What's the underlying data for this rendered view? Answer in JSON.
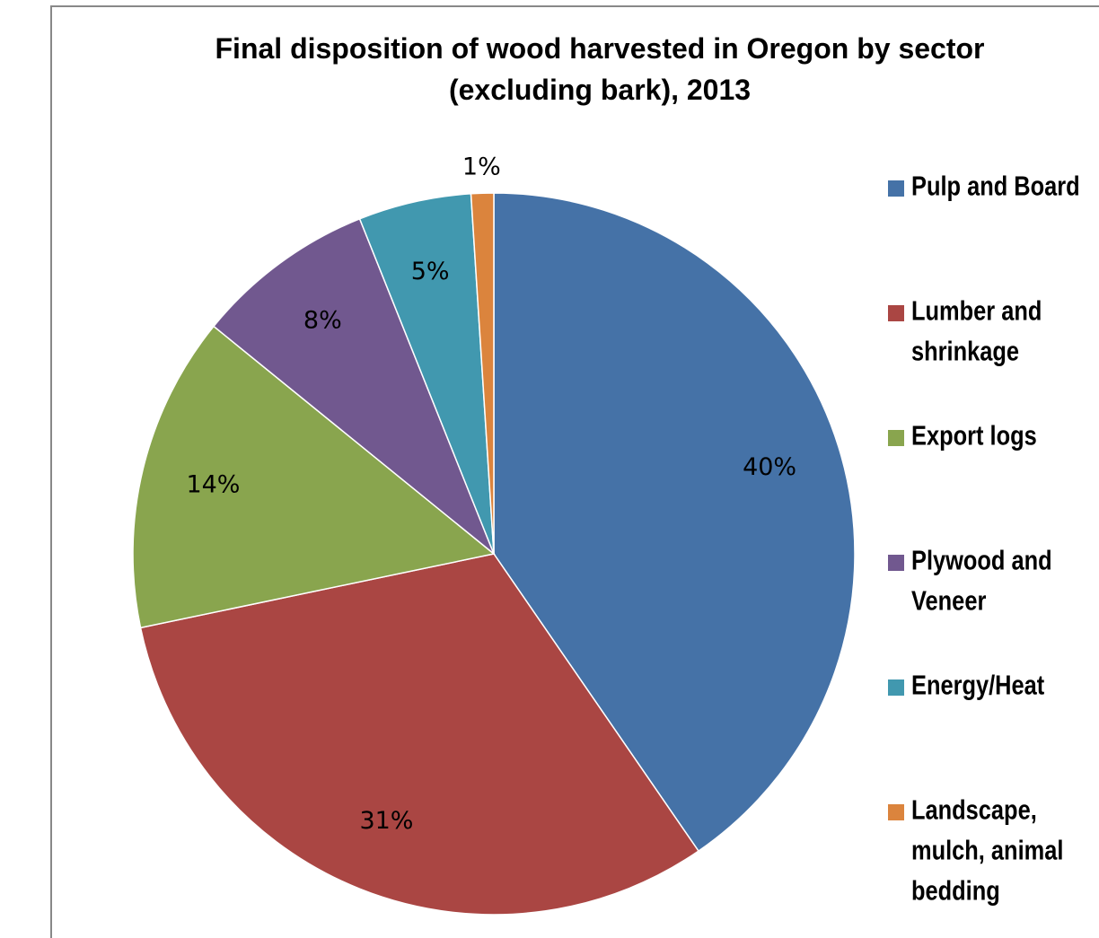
{
  "chart_data": {
    "type": "pie",
    "title": "Final disposition of wood harvested in Oregon by sector (excluding bark), 2013",
    "categories": [
      "Pulp and Board",
      "Lumber and shrinkage",
      "Export logs",
      "Plywood and Veneer",
      "Energy/Heat",
      "Landscape, mulch, animal bedding"
    ],
    "values": [
      40,
      31,
      14,
      8,
      5,
      1
    ],
    "value_labels": [
      "40%",
      "31%",
      "14%",
      "8%",
      "5%",
      "1%"
    ],
    "colors": [
      "#4572a7",
      "#aa4643",
      "#89a54e",
      "#71588f",
      "#4198af",
      "#db843d"
    ],
    "legend": "right"
  }
}
